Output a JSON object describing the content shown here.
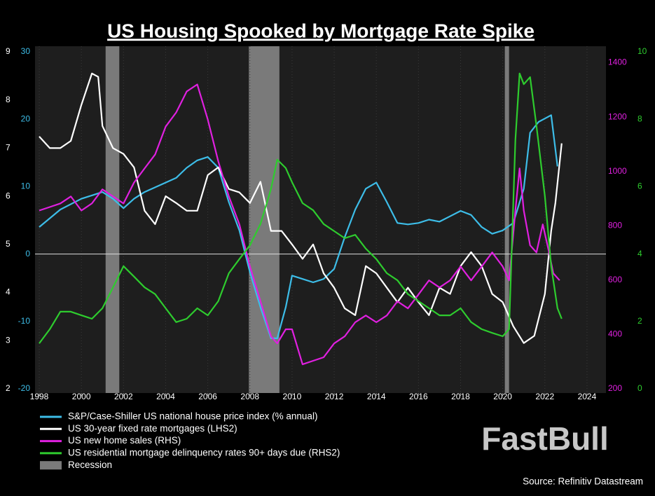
{
  "chart_data": {
    "type": "line",
    "title": "US Housing Spooked by Mortgage Rate Spike",
    "source": "Source: Refinitiv Datastream",
    "watermark": "FastBull",
    "xlim": [
      1997.8,
      2024.9
    ],
    "xticks": [
      1998,
      2000,
      2002,
      2004,
      2006,
      2008,
      2010,
      2012,
      2014,
      2016,
      2018,
      2020,
      2022,
      2024
    ],
    "ylim": [
      -20,
      30
    ],
    "yticks": [
      -20,
      -10,
      0,
      10,
      20,
      30
    ],
    "ytick_color": "#3dbde8",
    "y2lim": [
      2,
      9
    ],
    "y2ticks": [
      2,
      3,
      4,
      5,
      6,
      7,
      8,
      9
    ],
    "y2tick_color": "#ffffff",
    "y3lim": [
      200,
      1440
    ],
    "y3ticks": [
      200,
      400,
      600,
      800,
      1000,
      1200,
      1400
    ],
    "y3tick_color": "#e020e0",
    "y4lim": [
      0,
      10
    ],
    "y4ticks": [
      0,
      2,
      4,
      6,
      8,
      10
    ],
    "y4tick_color": "#2ecc2e",
    "hline": 0,
    "grid": true,
    "recessions": {
      "name": "Recession",
      "color": "#7a7a7a",
      "spans": [
        [
          2001.15,
          2001.8
        ],
        [
          2007.95,
          2009.4
        ],
        [
          2020.1,
          2020.3
        ]
      ]
    },
    "series": [
      {
        "name": "S&P/Case-Shiller US national house price index (% annual)",
        "color": "#3dbde8",
        "axis": "y",
        "x": [
          1998,
          1999,
          2000,
          2000.5,
          2001,
          2001.5,
          2002,
          2002.5,
          2003,
          2004,
          2004.5,
          2005,
          2005.5,
          2006,
          2006.5,
          2007,
          2007.5,
          2008,
          2008.5,
          2009,
          2009.3,
          2009.7,
          2010,
          2010.5,
          2011,
          2011.5,
          2012,
          2012.5,
          2013,
          2013.5,
          2014,
          2014.5,
          2015,
          2015.5,
          2016,
          2016.5,
          2017,
          2017.5,
          2018,
          2018.5,
          2019,
          2019.5,
          2020,
          2020.5,
          2021,
          2021.3,
          2021.7,
          2022,
          2022.3,
          2022.6
        ],
        "values": [
          4,
          6.6,
          8.2,
          8.7,
          9.2,
          8.2,
          6.8,
          8.2,
          9.2,
          10.6,
          11.3,
          12.8,
          13.9,
          14.4,
          12.8,
          7.7,
          3.5,
          -2.7,
          -7.9,
          -12.5,
          -12.5,
          -7.9,
          -3.2,
          -3.7,
          -4.2,
          -3.7,
          -2.2,
          2.5,
          6.6,
          9.7,
          10.6,
          7.7,
          4.6,
          4.4,
          4.6,
          5.1,
          4.8,
          5.6,
          6.4,
          5.8,
          4,
          3,
          3.5,
          4.6,
          9.7,
          18,
          19.6,
          20.1,
          20.6,
          13
        ]
      },
      {
        "name": "US 30-year fixed rate mortgages (LHS2)",
        "color": "#ffffff",
        "axis": "y2",
        "x": [
          1998,
          1998.5,
          1999,
          1999.5,
          2000,
          2000.5,
          2000.8,
          2001,
          2001.5,
          2002,
          2002.5,
          2003,
          2003.5,
          2004,
          2004.5,
          2005,
          2005.5,
          2006,
          2006.5,
          2007,
          2007.5,
          2008,
          2008.5,
          2009,
          2009.5,
          2010,
          2010.5,
          2011,
          2011.5,
          2012,
          2012.5,
          2013,
          2013.5,
          2014,
          2014.5,
          2015,
          2015.5,
          2016,
          2016.5,
          2017,
          2017.5,
          2018,
          2018.5,
          2019,
          2019.5,
          2020,
          2020.5,
          2021,
          2021.5,
          2022,
          2022.3,
          2022.5,
          2022.8
        ],
        "values": [
          7.24,
          7,
          7,
          7.15,
          7.9,
          8.55,
          8.48,
          7.46,
          7,
          6.88,
          6.6,
          5.7,
          5.42,
          6,
          5.86,
          5.7,
          5.7,
          6.44,
          6.6,
          6.15,
          6.08,
          5.86,
          6.3,
          5.28,
          5.28,
          5,
          4.7,
          5,
          4.4,
          4.1,
          3.67,
          3.53,
          4.55,
          4.4,
          4.1,
          3.8,
          4.1,
          3.8,
          3.53,
          4.1,
          3.97,
          4.55,
          4.84,
          4.55,
          3.97,
          3.8,
          3.3,
          2.95,
          3.1,
          3.97,
          5.28,
          5.86,
          7.1
        ]
      },
      {
        "name": "US new home sales (RHS)",
        "color": "#e020e0",
        "axis": "y3",
        "x": [
          1998,
          1998.5,
          1999,
          1999.5,
          2000,
          2000.5,
          2001,
          2001.5,
          2002,
          2002.5,
          2003,
          2003.5,
          2004,
          2004.5,
          2005,
          2005.5,
          2006,
          2006.5,
          2007,
          2007.5,
          2008,
          2008.5,
          2009,
          2009.3,
          2009.7,
          2010,
          2010.5,
          2011,
          2011.5,
          2012,
          2012.5,
          2013,
          2013.5,
          2014,
          2014.5,
          2015,
          2015.5,
          2016,
          2016.5,
          2017,
          2017.5,
          2018,
          2018.5,
          2019,
          2019.5,
          2020,
          2020.3,
          2020.6,
          2020.8,
          2021,
          2021.3,
          2021.6,
          2021.9,
          2022.2,
          2022.4,
          2022.7
        ],
        "values": [
          856,
          869,
          882,
          908,
          856,
          882,
          934,
          908,
          882,
          959,
          1011,
          1062,
          1165,
          1217,
          1294,
          1320,
          1191,
          1037,
          908,
          805,
          650,
          522,
          393,
          367,
          419,
          419,
          290,
          303,
          316,
          367,
          393,
          445,
          470,
          445,
          470,
          522,
          496,
          547,
          599,
          573,
          599,
          650,
          599,
          650,
          702,
          650,
          599,
          856,
          1011,
          856,
          728,
          702,
          805,
          702,
          625,
          599
        ]
      },
      {
        "name": "US residential mortgage delinquency rates 90+ days due (RHS2)",
        "color": "#2ecc2e",
        "axis": "y4",
        "x": [
          1998,
          1998.5,
          1999,
          1999.5,
          2000,
          2000.5,
          2001,
          2001.5,
          2002,
          2002.5,
          2003,
          2003.5,
          2004,
          2004.5,
          2005,
          2005.5,
          2006,
          2006.5,
          2007,
          2007.5,
          2008,
          2008.5,
          2009,
          2009.3,
          2009.7,
          2010,
          2010.5,
          2011,
          2011.5,
          2012,
          2012.5,
          2013,
          2013.5,
          2014,
          2014.5,
          2015,
          2015.5,
          2016,
          2016.5,
          2017,
          2017.5,
          2018,
          2018.5,
          2019,
          2019.5,
          2020,
          2020.3,
          2020.6,
          2020.8,
          2021,
          2021.3,
          2021.6,
          2022,
          2022.3,
          2022.6,
          2022.8
        ],
        "values": [
          1.35,
          1.77,
          2.29,
          2.29,
          2.18,
          2.08,
          2.39,
          3.01,
          3.64,
          3.33,
          3.01,
          2.81,
          2.39,
          1.98,
          2.08,
          2.39,
          2.18,
          2.6,
          3.43,
          3.85,
          4.26,
          4.89,
          5.93,
          6.8,
          6.55,
          6.13,
          5.51,
          5.3,
          4.89,
          4.68,
          4.47,
          4.57,
          4.16,
          3.85,
          3.43,
          3.22,
          2.81,
          2.6,
          2.39,
          2.18,
          2.18,
          2.39,
          1.98,
          1.77,
          1.66,
          1.56,
          1.77,
          7.38,
          9.36,
          9.04,
          9.25,
          7.8,
          5.72,
          3.64,
          2.39,
          2.08
        ]
      }
    ]
  }
}
